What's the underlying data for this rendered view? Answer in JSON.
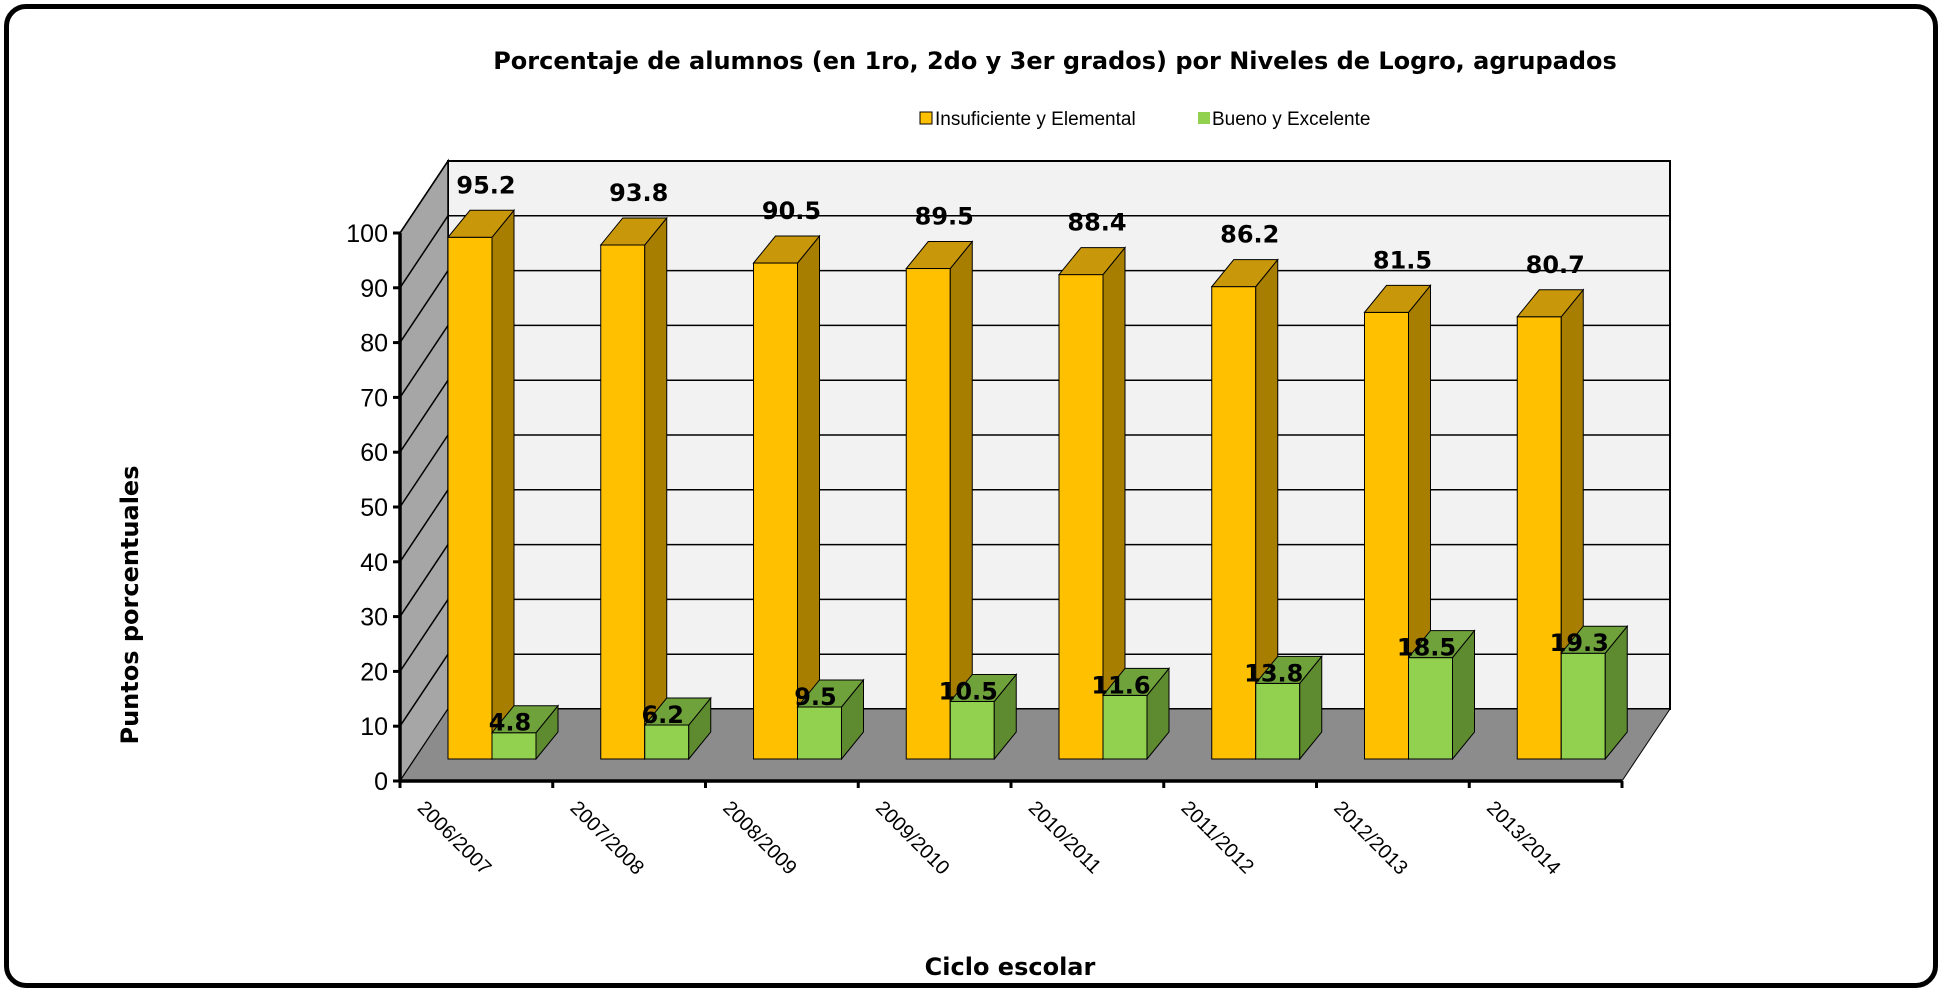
{
  "chart_data": {
    "type": "bar",
    "title": "Porcentaje de alumnos (en 1ro, 2do y 3er grados) por Niveles de Logro, agrupados",
    "xlabel": "Ciclo escolar",
    "ylabel": "Puntos porcentuales",
    "ylim": [
      0,
      100
    ],
    "yticks": [
      "0",
      "10",
      "20",
      "30",
      "40",
      "50",
      "60",
      "70",
      "80",
      "90",
      "100"
    ],
    "categories": [
      "2006/2007",
      "2007/2008",
      "2008/2009",
      "2009/2010",
      "2010/2011",
      "2011/2012",
      "2012/2013",
      "2013/2014"
    ],
    "series": [
      {
        "name": "Insuficiente y Elemental",
        "values": [
          95.2,
          93.8,
          90.5,
          89.5,
          88.4,
          86.2,
          81.5,
          80.7
        ],
        "labels": [
          "95.2",
          "93.8",
          "90.5",
          "89.5",
          "88.4",
          "86.2",
          "81.5",
          "80.7"
        ],
        "color": "#FFC000",
        "side_color": "#A87E00",
        "top_color": "#C9980A"
      },
      {
        "name": "Bueno y Excelente",
        "values": [
          4.8,
          6.2,
          9.5,
          10.5,
          11.6,
          13.8,
          18.5,
          19.3
        ],
        "labels": [
          "4.8",
          "6.2",
          "9.5",
          "10.5",
          "11.6",
          "13.8",
          "18.5",
          "19.3"
        ],
        "color": "#92D050",
        "side_color": "#5E8A30",
        "top_color": "#70A23C"
      }
    ],
    "legend_position": "top",
    "grid": true,
    "three_d": true,
    "wall_color": "#F2F2F2",
    "side_wall_color": "#A6A6A6",
    "floor_color": "#8C8C8C"
  }
}
